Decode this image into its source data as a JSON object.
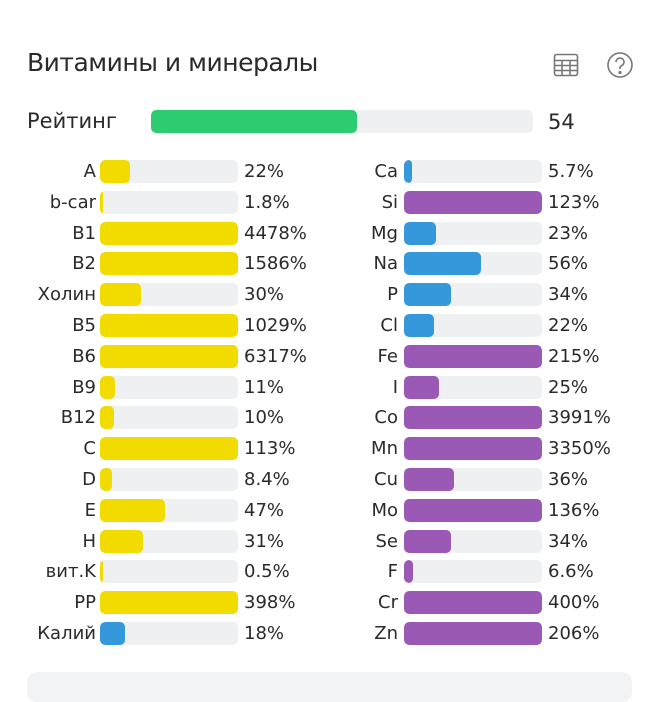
{
  "title": "Витамины и минералы",
  "icons": {
    "table": "table-icon",
    "help": "help-icon"
  },
  "rating": {
    "label": "Рейтинг",
    "value": "54",
    "percent": 54,
    "color": "#2ecc71"
  },
  "colors": {
    "vitamin": "#f2dc00",
    "macro": "#3498db",
    "micro": "#9b59b6"
  },
  "left": [
    {
      "label": "A",
      "value": "22%",
      "pct": 22,
      "type": "vitamin"
    },
    {
      "label": "b-car",
      "value": "1.8%",
      "pct": 1.8,
      "type": "vitamin"
    },
    {
      "label": "B1",
      "value": "4478%",
      "pct": 4478,
      "type": "vitamin"
    },
    {
      "label": "B2",
      "value": "1586%",
      "pct": 1586,
      "type": "vitamin"
    },
    {
      "label": "Холин",
      "value": "30%",
      "pct": 30,
      "type": "vitamin"
    },
    {
      "label": "B5",
      "value": "1029%",
      "pct": 1029,
      "type": "vitamin"
    },
    {
      "label": "B6",
      "value": "6317%",
      "pct": 6317,
      "type": "vitamin"
    },
    {
      "label": "B9",
      "value": "11%",
      "pct": 11,
      "type": "vitamin"
    },
    {
      "label": "B12",
      "value": "10%",
      "pct": 10,
      "type": "vitamin"
    },
    {
      "label": "C",
      "value": "113%",
      "pct": 113,
      "type": "vitamin"
    },
    {
      "label": "D",
      "value": "8.4%",
      "pct": 8.4,
      "type": "vitamin"
    },
    {
      "label": "E",
      "value": "47%",
      "pct": 47,
      "type": "vitamin"
    },
    {
      "label": "H",
      "value": "31%",
      "pct": 31,
      "type": "vitamin"
    },
    {
      "label": "вит.K",
      "value": "0.5%",
      "pct": 0.5,
      "type": "vitamin"
    },
    {
      "label": "PP",
      "value": "398%",
      "pct": 398,
      "type": "vitamin"
    },
    {
      "label": "Калий",
      "value": "18%",
      "pct": 18,
      "type": "macro"
    }
  ],
  "right": [
    {
      "label": "Ca",
      "value": "5.7%",
      "pct": 5.7,
      "type": "macro"
    },
    {
      "label": "Si",
      "value": "123%",
      "pct": 123,
      "type": "micro"
    },
    {
      "label": "Mg",
      "value": "23%",
      "pct": 23,
      "type": "macro"
    },
    {
      "label": "Na",
      "value": "56%",
      "pct": 56,
      "type": "macro"
    },
    {
      "label": "P",
      "value": "34%",
      "pct": 34,
      "type": "macro"
    },
    {
      "label": "Cl",
      "value": "22%",
      "pct": 22,
      "type": "macro"
    },
    {
      "label": "Fe",
      "value": "215%",
      "pct": 215,
      "type": "micro"
    },
    {
      "label": "I",
      "value": "25%",
      "pct": 25,
      "type": "micro"
    },
    {
      "label": "Co",
      "value": "3991%",
      "pct": 3991,
      "type": "micro"
    },
    {
      "label": "Mn",
      "value": "3350%",
      "pct": 3350,
      "type": "micro"
    },
    {
      "label": "Cu",
      "value": "36%",
      "pct": 36,
      "type": "micro"
    },
    {
      "label": "Mo",
      "value": "136%",
      "pct": 136,
      "type": "micro"
    },
    {
      "label": "Se",
      "value": "34%",
      "pct": 34,
      "type": "micro"
    },
    {
      "label": "F",
      "value": "6.6%",
      "pct": 6.6,
      "type": "micro"
    },
    {
      "label": "Cr",
      "value": "400%",
      "pct": 400,
      "type": "micro"
    },
    {
      "label": "Zn",
      "value": "206%",
      "pct": 206,
      "type": "micro"
    }
  ]
}
